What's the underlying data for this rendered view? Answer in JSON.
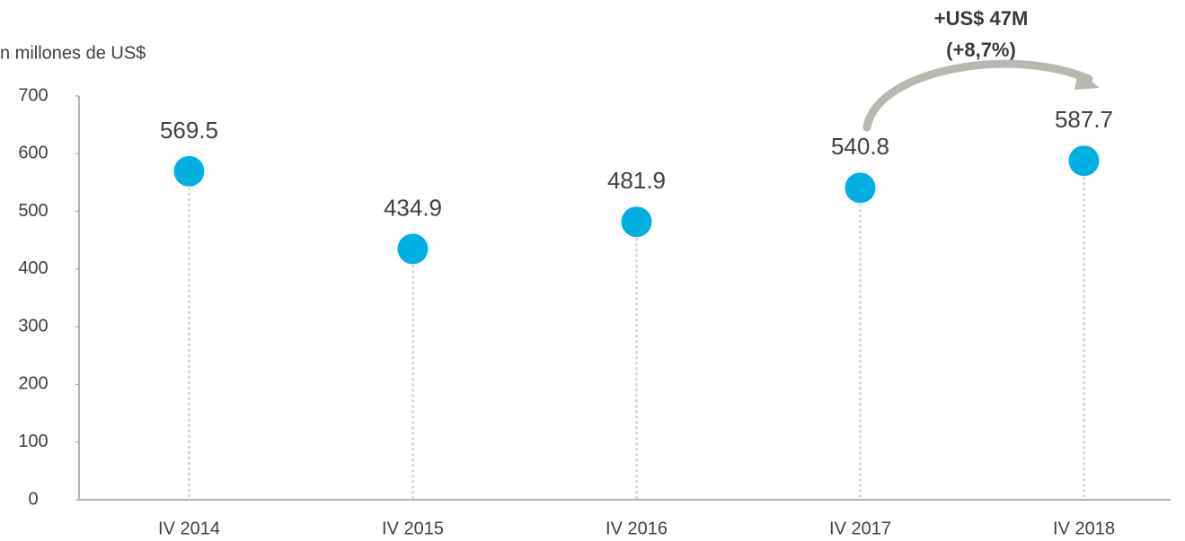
{
  "chart_data": {
    "type": "lollipop",
    "y_axis_label": "n millones de US$",
    "annotation": [
      "+US$ 47M",
      "(+8,7%)"
    ],
    "categories": [
      "IV 2014",
      "IV 2015",
      "IV 2016",
      "IV 2017",
      "IV 2018"
    ],
    "values": [
      569.5,
      434.9,
      481.9,
      540.8,
      587.7
    ],
    "color": "#00b0e0",
    "ylim": [
      0,
      700
    ],
    "yticks": [
      0,
      100,
      200,
      300,
      400,
      500,
      600,
      700
    ]
  }
}
